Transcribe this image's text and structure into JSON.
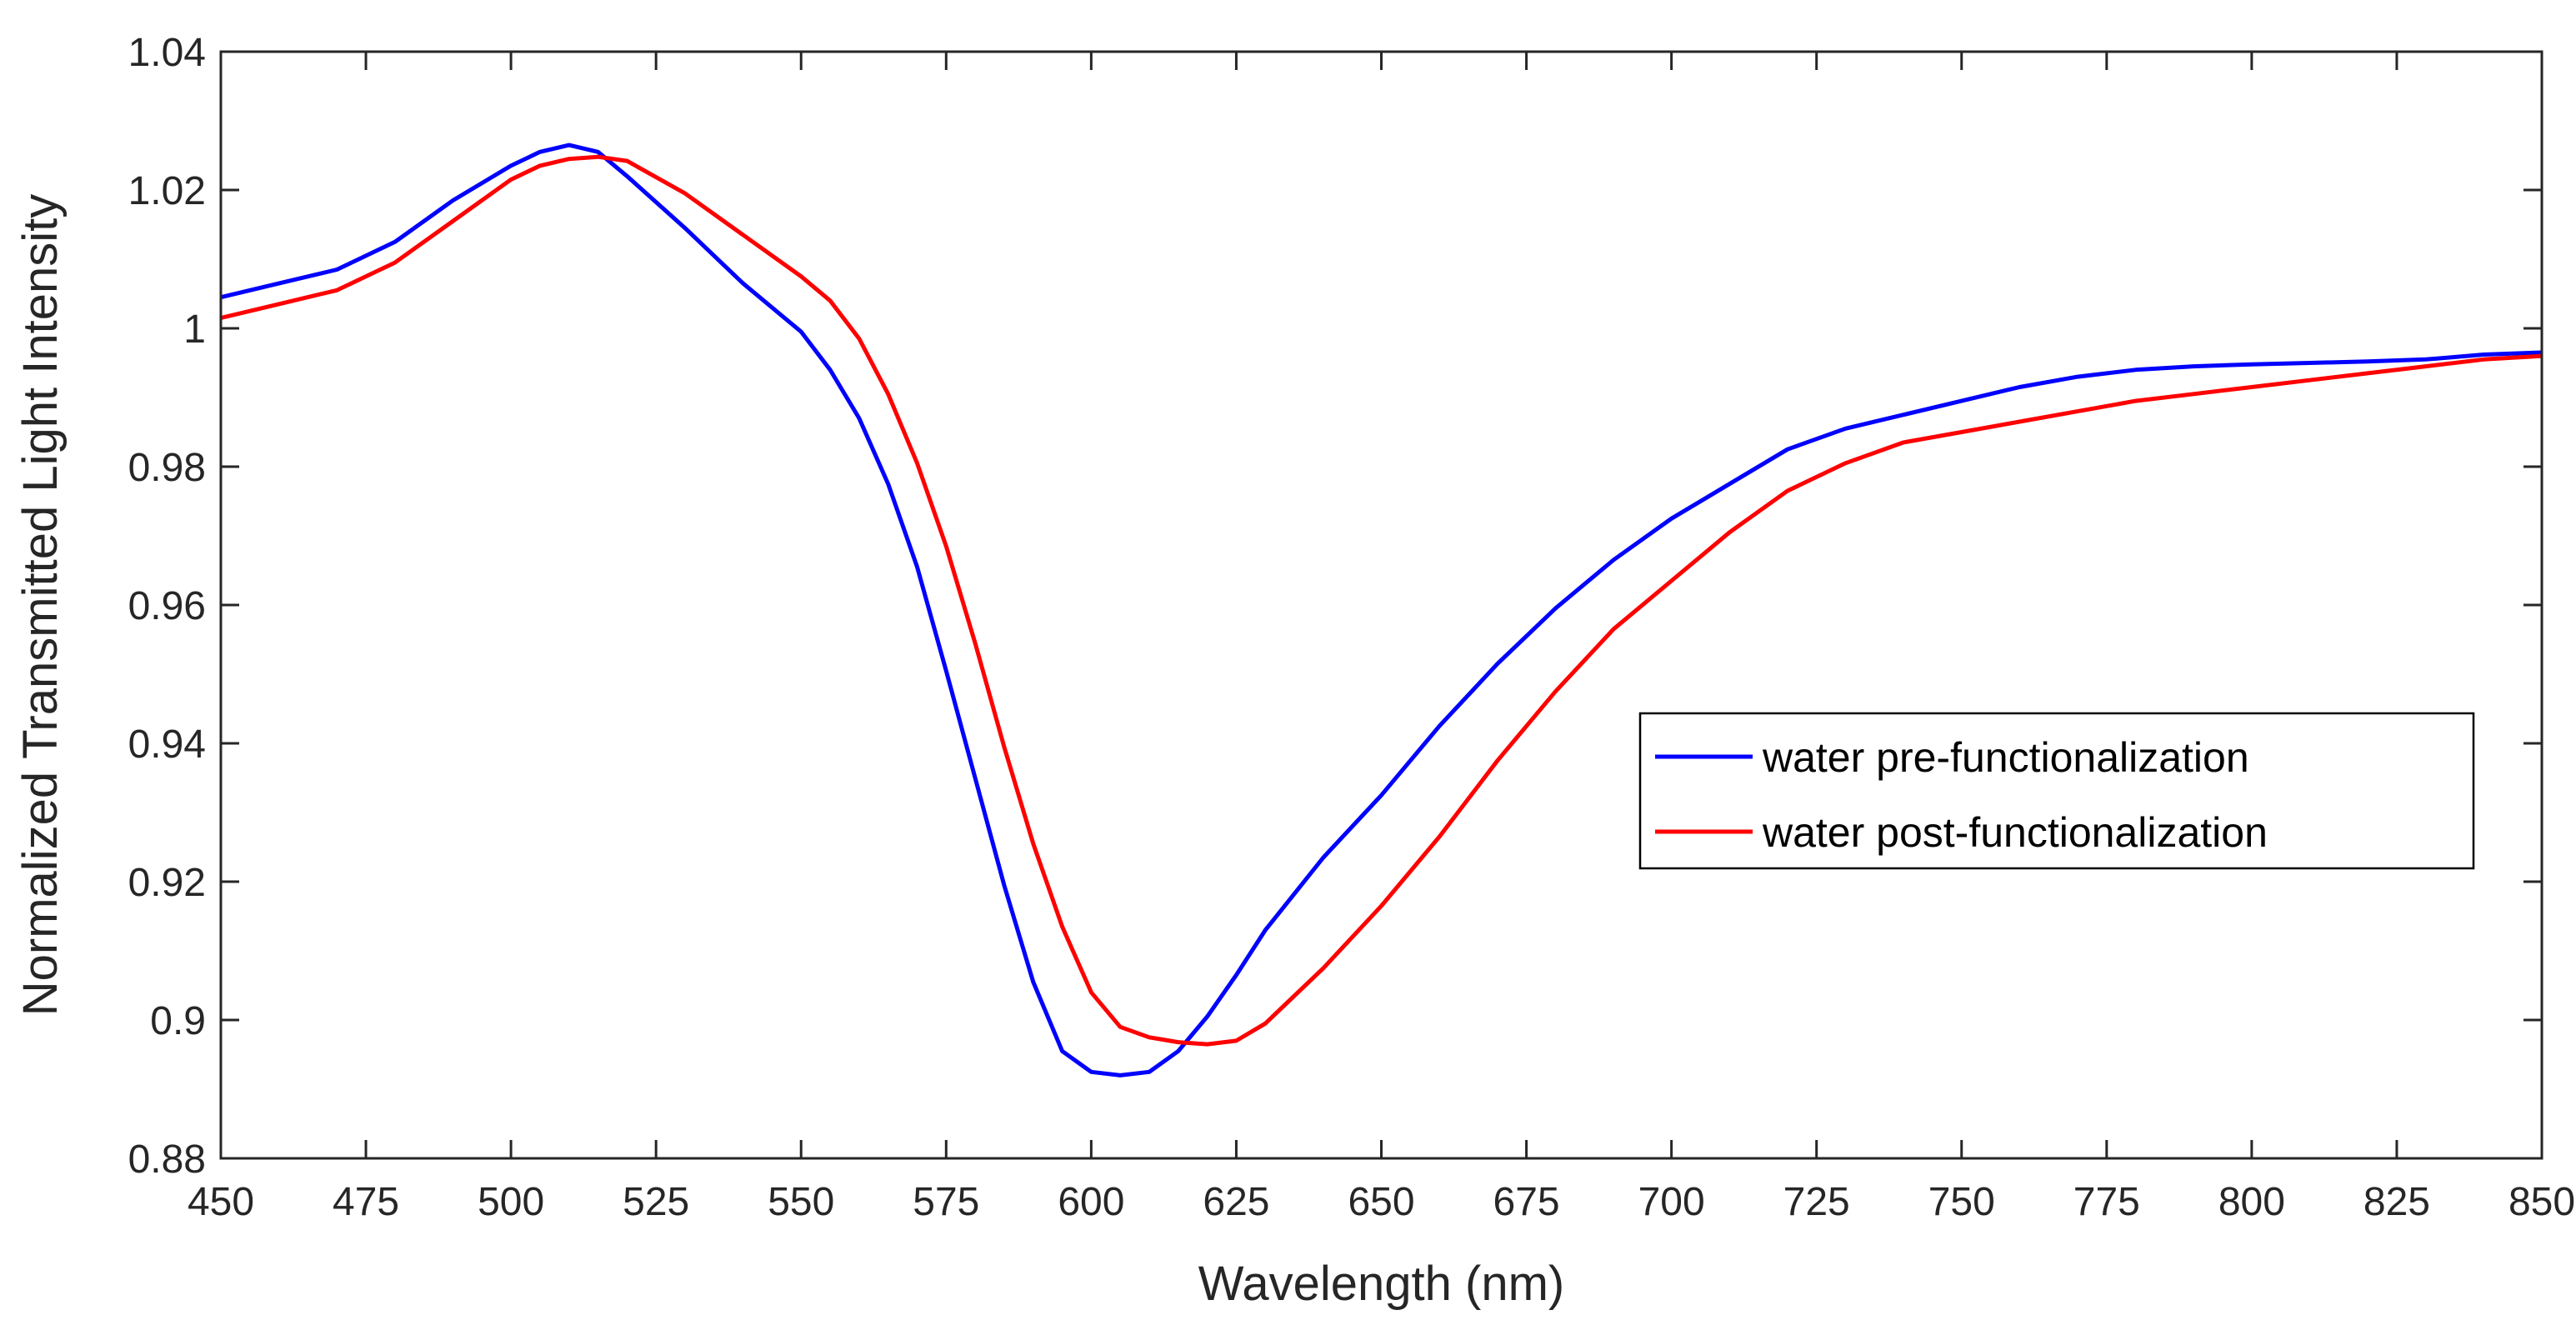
{
  "chart_data": {
    "type": "line",
    "title": "",
    "xlabel": "Wavelength (nm)",
    "ylabel": "Normalized Transmitted Light Intensity",
    "xlim": [
      450,
      850
    ],
    "ylim": [
      0.88,
      1.04
    ],
    "xticks": [
      450,
      475,
      500,
      525,
      550,
      575,
      600,
      625,
      650,
      675,
      700,
      725,
      750,
      775,
      800,
      825,
      850
    ],
    "xtick_labels": [
      "450",
      "475",
      "500",
      "525",
      "550",
      "575",
      "600",
      "625",
      "650",
      "675",
      "700",
      "725",
      "750",
      "775",
      "800",
      "825",
      "850"
    ],
    "yticks": [
      0.88,
      0.9,
      0.92,
      0.94,
      0.96,
      0.98,
      1.0,
      1.02,
      1.04
    ],
    "ytick_labels": [
      "0.88",
      "0.9",
      "0.92",
      "0.94",
      "0.96",
      "0.98",
      "1",
      "1.02",
      "1.04"
    ],
    "grid": false,
    "legend_position": "middle-right",
    "series": [
      {
        "name": "water pre-functionalization",
        "color": "#0000ff",
        "x": [
          450,
          460,
          470,
          480,
          490,
          500,
          505,
          510,
          515,
          520,
          530,
          540,
          550,
          555,
          560,
          565,
          570,
          575,
          580,
          585,
          590,
          595,
          600,
          605,
          610,
          615,
          620,
          625,
          630,
          640,
          650,
          660,
          670,
          680,
          690,
          700,
          710,
          720,
          730,
          740,
          750,
          760,
          770,
          780,
          790,
          800,
          810,
          820,
          830,
          840,
          850
        ],
        "y": [
          1.0045,
          1.0065,
          1.0085,
          1.0125,
          1.0185,
          1.0235,
          1.0255,
          1.0265,
          1.0255,
          1.022,
          1.0145,
          1.0065,
          0.9995,
          0.994,
          0.987,
          0.9775,
          0.9655,
          0.9505,
          0.935,
          0.9195,
          0.9055,
          0.8955,
          0.8925,
          0.892,
          0.8925,
          0.8955,
          0.9005,
          0.9065,
          0.913,
          0.9235,
          0.9325,
          0.9425,
          0.9515,
          0.9595,
          0.9665,
          0.9725,
          0.9775,
          0.9825,
          0.9855,
          0.9875,
          0.9895,
          0.9915,
          0.993,
          0.994,
          0.9945,
          0.9948,
          0.995,
          0.9952,
          0.9955,
          0.9962,
          0.9965
        ]
      },
      {
        "name": "water post-functionalization",
        "color": "#ff0000",
        "x": [
          450,
          460,
          470,
          480,
          490,
          500,
          505,
          510,
          515,
          520,
          530,
          540,
          550,
          555,
          560,
          565,
          570,
          575,
          580,
          585,
          590,
          595,
          600,
          605,
          610,
          615,
          620,
          625,
          630,
          640,
          650,
          660,
          670,
          680,
          690,
          700,
          710,
          720,
          730,
          740,
          750,
          760,
          770,
          780,
          790,
          800,
          810,
          820,
          830,
          840,
          850
        ],
        "y": [
          1.0015,
          1.0035,
          1.0055,
          1.0095,
          1.0155,
          1.0215,
          1.0235,
          1.0245,
          1.0248,
          1.0242,
          1.0195,
          1.0135,
          1.0075,
          1.004,
          0.9985,
          0.9905,
          0.9805,
          0.9685,
          0.9545,
          0.9395,
          0.9255,
          0.9135,
          0.904,
          0.899,
          0.8975,
          0.8968,
          0.8965,
          0.897,
          0.8995,
          0.9075,
          0.9165,
          0.9265,
          0.9375,
          0.9475,
          0.9565,
          0.9635,
          0.9705,
          0.9765,
          0.9805,
          0.9835,
          0.985,
          0.9865,
          0.988,
          0.9895,
          0.9905,
          0.9915,
          0.9925,
          0.9935,
          0.9945,
          0.9955,
          0.996
        ]
      }
    ]
  }
}
